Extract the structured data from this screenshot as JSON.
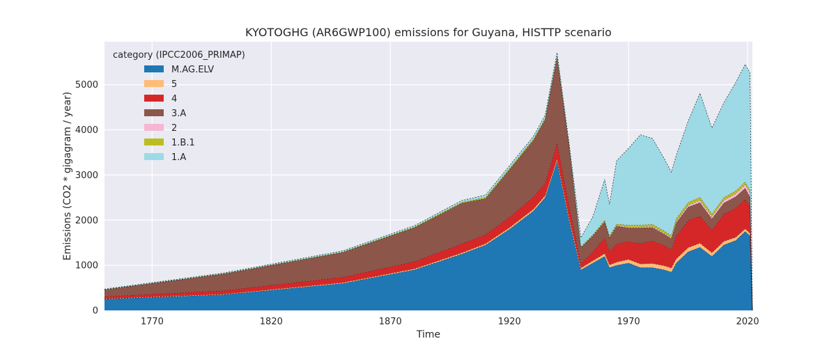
{
  "chart_data": {
    "type": "area",
    "stacked": true,
    "title": "KYOTOGHG (AR6GWP100) emissions for Guyana, HISTTP scenario",
    "xlabel": "Time",
    "ylabel": "Emissions (CO2 * gigagram / year)",
    "xlim": [
      1750,
      2022
    ],
    "ylim": [
      0,
      5950
    ],
    "xticks": [
      1770,
      1820,
      1870,
      1920,
      1970,
      2020
    ],
    "yticks": [
      0,
      1000,
      2000,
      3000,
      4000,
      5000
    ],
    "grid": true,
    "legend_title": "category (IPCC2006_PRIMAP)",
    "legend_position": "top-left",
    "x": [
      1750,
      1800,
      1850,
      1880,
      1900,
      1910,
      1920,
      1930,
      1935,
      1940,
      1945,
      1950,
      1955,
      1960,
      1962,
      1965,
      1970,
      1975,
      1980,
      1985,
      1988,
      1990,
      1995,
      2000,
      2005,
      2010,
      2015,
      2019,
      2021,
      2022
    ],
    "series": [
      {
        "name": "M.AG.ELV",
        "color": "#1f77b4",
        "values": [
          250,
          350,
          600,
          900,
          1250,
          1450,
          1800,
          2200,
          2500,
          3300,
          2000,
          900,
          1050,
          1200,
          950,
          1000,
          1050,
          950,
          950,
          900,
          850,
          1050,
          1300,
          1400,
          1200,
          1450,
          1550,
          1750,
          1650,
          0
        ]
      },
      {
        "name": "5",
        "color": "#ffbb78",
        "values": [
          8,
          10,
          15,
          20,
          25,
          30,
          35,
          40,
          45,
          50,
          50,
          40,
          50,
          60,
          60,
          70,
          80,
          80,
          90,
          90,
          90,
          90,
          90,
          90,
          80,
          80,
          70,
          60,
          60,
          0
        ]
      },
      {
        "name": "4",
        "color": "#d62728",
        "values": [
          50,
          80,
          120,
          160,
          200,
          200,
          230,
          270,
          280,
          350,
          300,
          100,
          200,
          350,
          300,
          400,
          400,
          450,
          500,
          450,
          400,
          500,
          600,
          600,
          500,
          600,
          650,
          650,
          600,
          0
        ]
      },
      {
        "name": "3.A",
        "color": "#8c564b",
        "values": [
          150,
          370,
          550,
          750,
          900,
          800,
          1050,
          1250,
          1400,
          1900,
          1300,
          350,
          350,
          350,
          300,
          400,
          300,
          350,
          300,
          250,
          250,
          300,
          300,
          300,
          250,
          250,
          250,
          250,
          200,
          0
        ]
      },
      {
        "name": "2",
        "color": "#f7b6d2",
        "values": [
          0,
          0,
          0,
          0,
          0,
          0,
          0,
          0,
          0,
          0,
          0,
          0,
          5,
          10,
          10,
          15,
          20,
          20,
          20,
          20,
          20,
          30,
          40,
          50,
          50,
          60,
          70,
          80,
          100,
          0
        ]
      },
      {
        "name": "1.B.1",
        "color": "#bcbd22",
        "values": [
          5,
          5,
          10,
          15,
          20,
          25,
          30,
          30,
          30,
          30,
          30,
          20,
          20,
          30,
          30,
          30,
          40,
          40,
          50,
          50,
          50,
          60,
          60,
          70,
          60,
          60,
          60,
          60,
          50,
          0
        ]
      },
      {
        "name": "1.A",
        "color": "#9edae5",
        "values": [
          10,
          15,
          25,
          30,
          40,
          50,
          60,
          60,
          70,
          80,
          50,
          200,
          400,
          900,
          700,
          1400,
          1700,
          2000,
          1900,
          1600,
          1400,
          1400,
          1800,
          2300,
          1900,
          2100,
          2400,
          2600,
          2600,
          0
        ]
      }
    ]
  }
}
